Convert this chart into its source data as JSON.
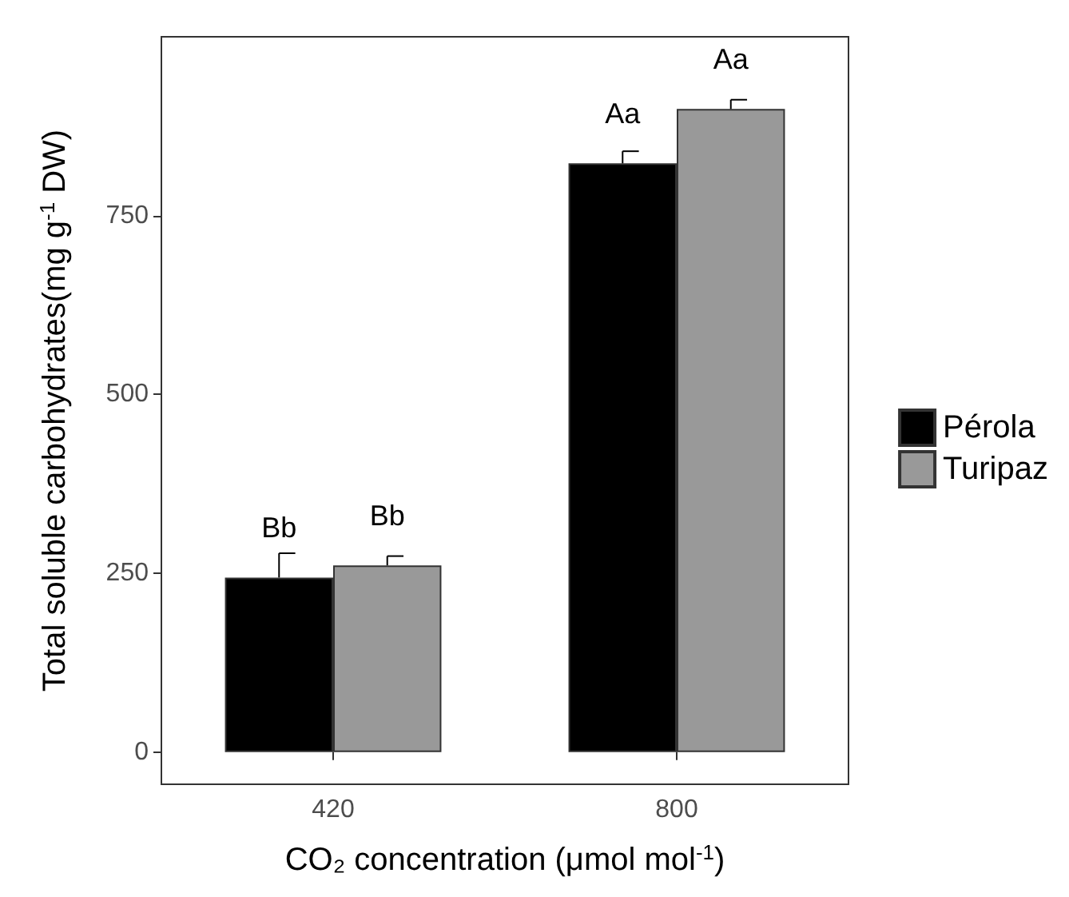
{
  "chart_data": {
    "type": "bar",
    "xlabel": "CO₂ concentration (μmol mol$^{-1}$)",
    "ylabel": "Total soluble carbohydrates(mg g$^{-1}$ DW)",
    "categories": [
      "420",
      "800"
    ],
    "series": [
      {
        "name": "Pérola",
        "color": "#000000",
        "values": [
          244,
          823
        ],
        "errors": [
          34,
          17
        ],
        "value_labels": [
          "Bb",
          "Aa"
        ]
      },
      {
        "name": "Turipaz",
        "color": "#999999",
        "values": [
          261,
          899
        ],
        "errors": [
          13,
          13
        ],
        "value_labels": [
          "Bb",
          "Aa"
        ]
      }
    ],
    "ylim": [
      -45,
      1000
    ],
    "yticks": [
      0,
      250,
      500,
      750
    ],
    "grid": false,
    "legend": "right"
  }
}
